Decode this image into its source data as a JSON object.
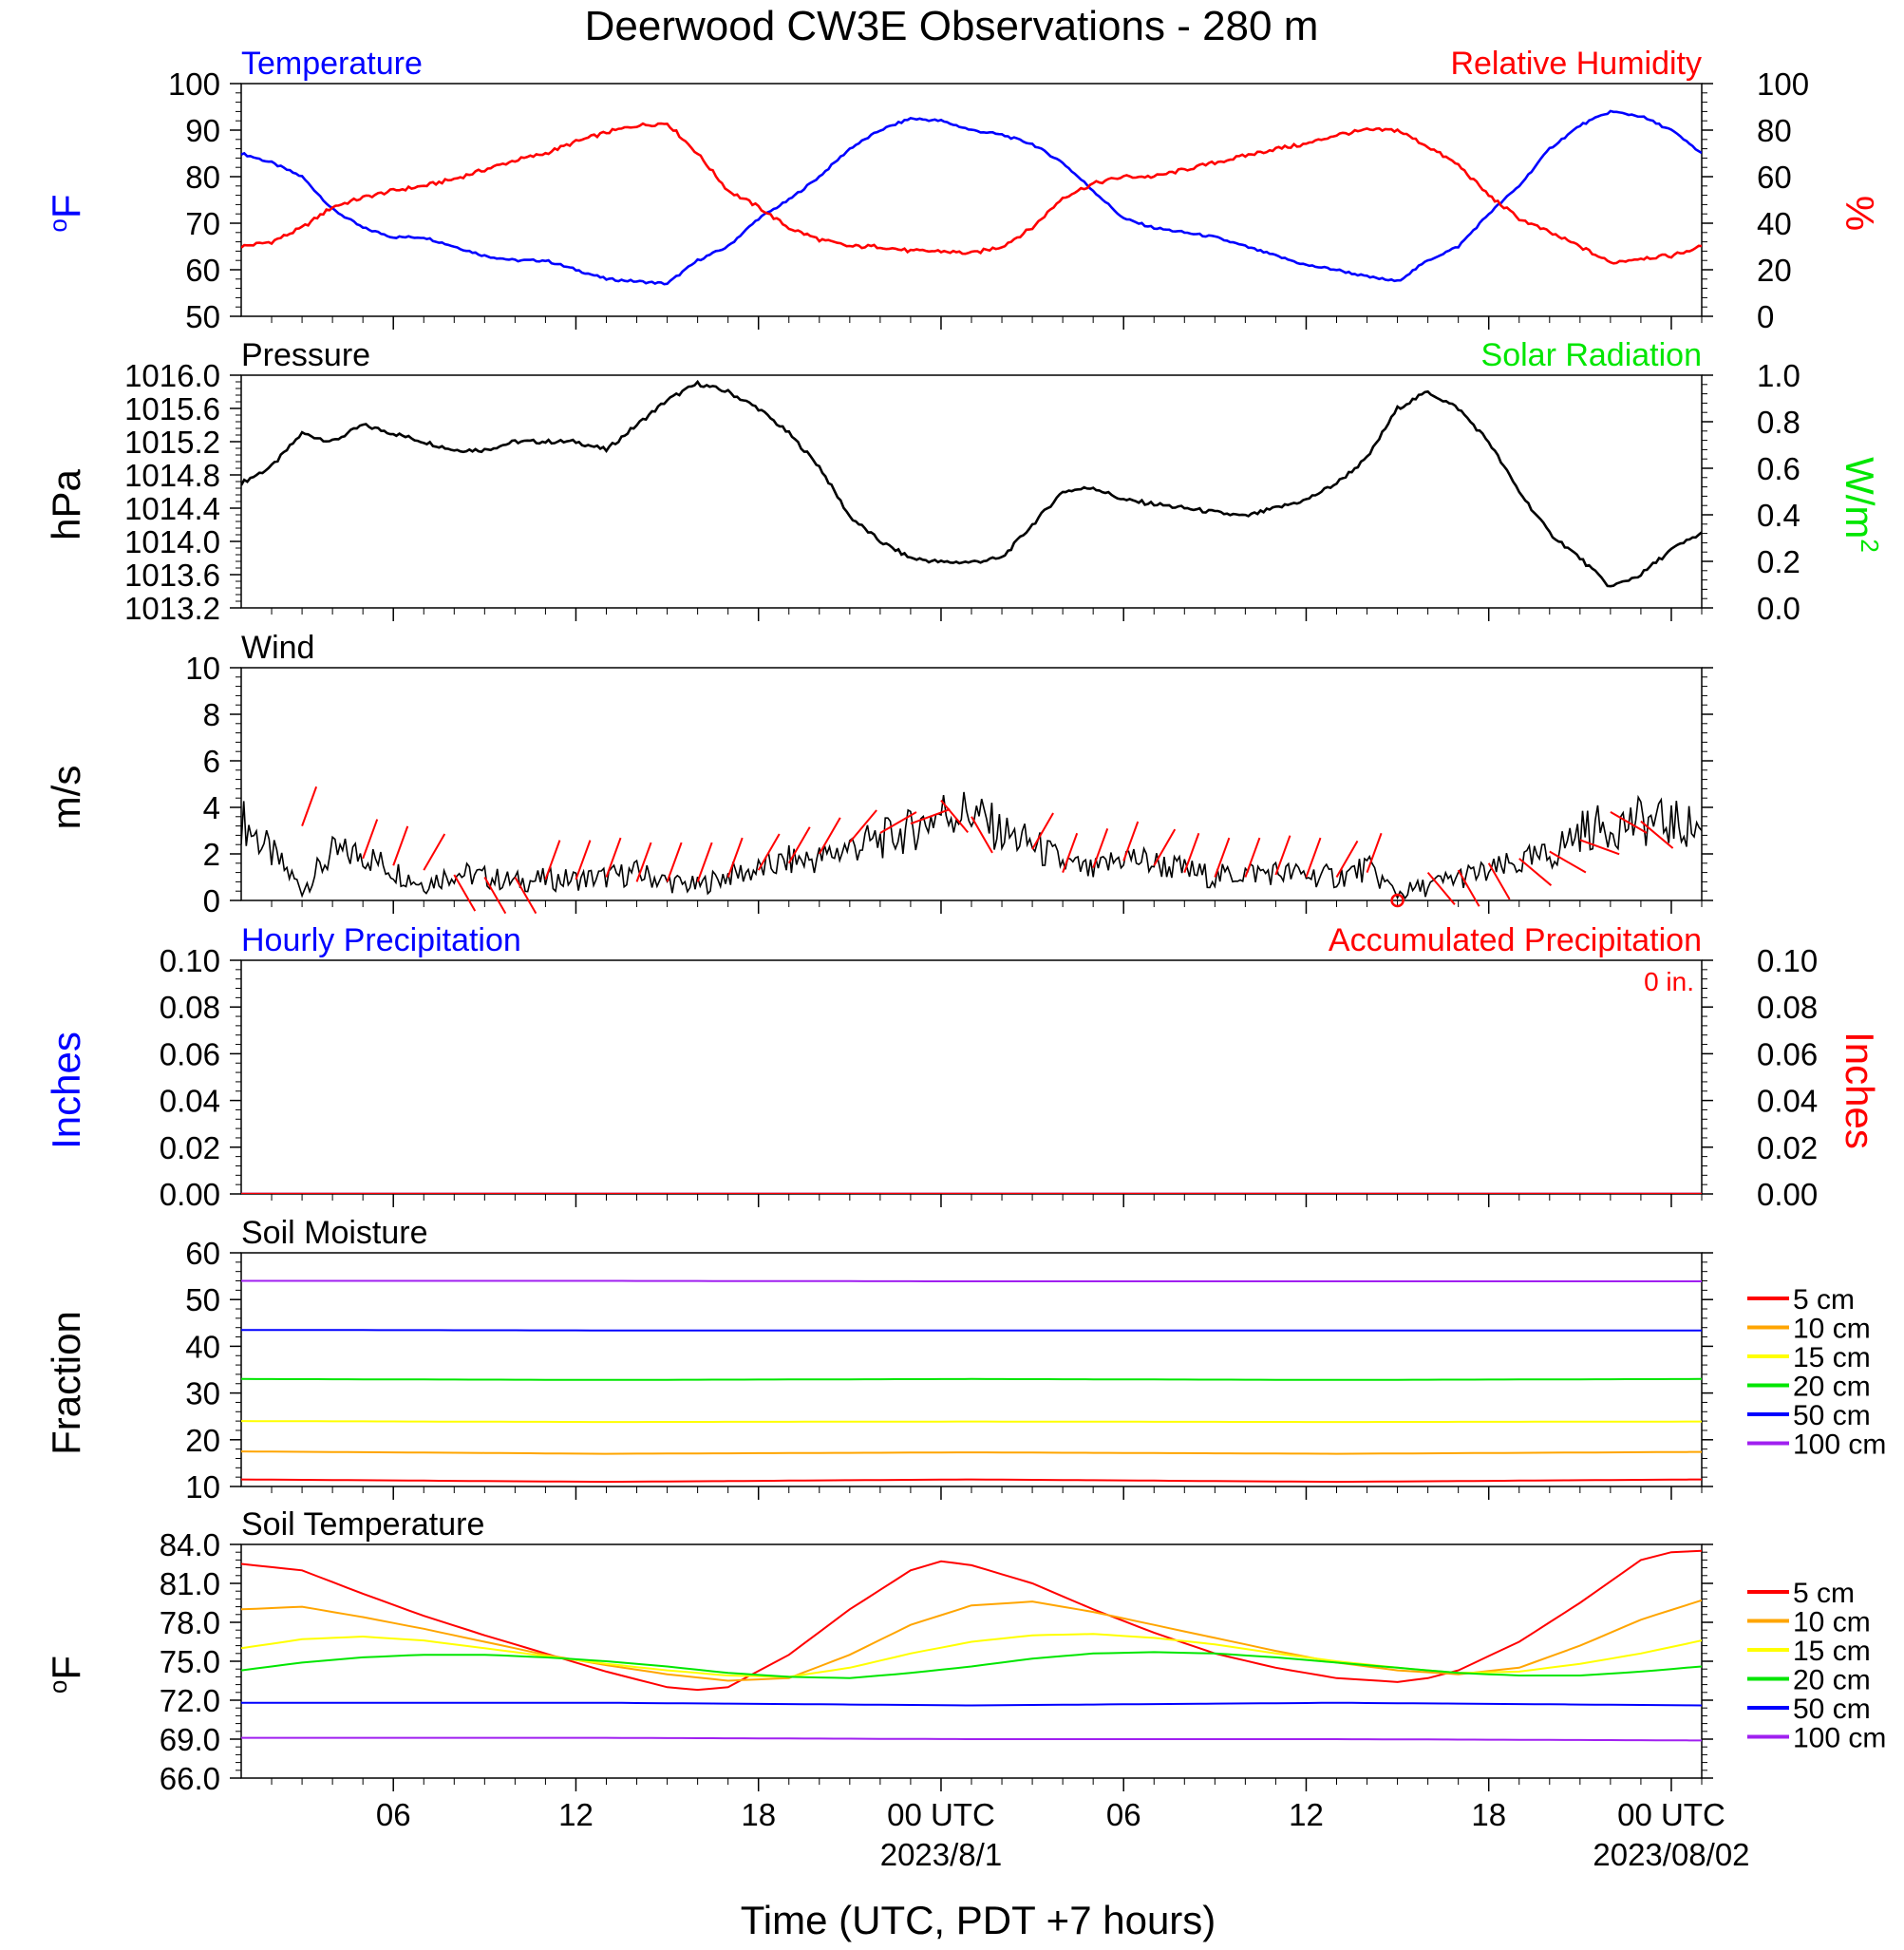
{
  "title": "Deerwood CW3E Observations - 280 m",
  "x_axis": {
    "label": "Time (UTC, PDT +7 hours)",
    "range_hours": [
      0,
      48
    ],
    "tick_labels": [
      {
        "hour": 5,
        "label": "06"
      },
      {
        "hour": 11,
        "label": "12"
      },
      {
        "hour": 17,
        "label": "18"
      },
      {
        "hour": 23,
        "label": "00 UTC"
      },
      {
        "hour": 29,
        "label": "06"
      },
      {
        "hour": 35,
        "label": "12"
      },
      {
        "hour": 41,
        "label": "18"
      },
      {
        "hour": 47,
        "label": "00 UTC"
      }
    ],
    "date_labels": [
      {
        "hour": 23,
        "label": "2023/8/1"
      },
      {
        "hour": 47,
        "label": "2023/08/02"
      }
    ]
  },
  "colors": {
    "temperature": "#0000ff",
    "humidity": "#ff0000",
    "solar": "#00e600",
    "black": "#000000",
    "accum": "#ff0000"
  },
  "chart_data": [
    {
      "id": "temp-rh",
      "type": "line",
      "left_title": "Temperature",
      "right_title": "Relative Humidity",
      "left_unit": "oF",
      "right_unit": "%",
      "left_ylim": [
        50,
        100
      ],
      "left_ticks": [
        "50",
        "60",
        "70",
        "80",
        "90",
        "100"
      ],
      "right_ylim": [
        0,
        100
      ],
      "right_ticks": [
        "0",
        "20",
        "40",
        "60",
        "80",
        "100"
      ],
      "series": [
        {
          "axis": "left",
          "color": "#0000ff",
          "x": [
            0,
            1,
            2,
            3,
            4,
            5,
            6,
            7,
            8,
            9,
            10,
            11,
            12,
            13,
            14,
            15,
            16,
            17,
            18,
            19,
            20,
            21,
            22,
            23,
            24,
            25,
            26,
            27,
            28,
            29,
            30,
            31,
            32,
            33,
            34,
            35,
            36,
            37,
            38,
            39,
            40,
            41,
            42,
            43,
            44,
            45,
            46,
            47,
            48
          ],
          "values": [
            85,
            83,
            80,
            73,
            69,
            67,
            67,
            65,
            63,
            62,
            62,
            60,
            58,
            57.5,
            57,
            62,
            65,
            71,
            75,
            80,
            86,
            90,
            92.5,
            92,
            90,
            89,
            87,
            83,
            77,
            71,
            69,
            68,
            67,
            65,
            63,
            61,
            60,
            58.5,
            57.5,
            62,
            65,
            72,
            78,
            86,
            91,
            94,
            93,
            90,
            85
          ]
        },
        {
          "axis": "right",
          "color": "#ff0000",
          "x": [
            0,
            1,
            2,
            3,
            4,
            5,
            6,
            7,
            8,
            9,
            10,
            11,
            12,
            13,
            14,
            15,
            16,
            17,
            18,
            19,
            20,
            21,
            22,
            23,
            24,
            25,
            26,
            27,
            28,
            29,
            30,
            31,
            32,
            33,
            34,
            35,
            36,
            37,
            38,
            39,
            40,
            41,
            42,
            43,
            44,
            45,
            46,
            47,
            48
          ],
          "values": [
            30,
            32,
            38,
            47,
            51,
            54,
            56,
            59,
            63,
            67,
            70,
            75,
            79,
            82,
            83,
            70,
            54,
            47,
            38,
            33,
            30,
            30,
            28,
            28,
            27,
            30,
            38,
            51,
            57,
            60,
            60,
            63,
            66,
            69,
            72,
            74,
            78,
            80,
            80,
            73,
            65,
            52,
            42,
            36,
            30,
            23,
            25,
            26,
            30
          ]
        }
      ]
    },
    {
      "id": "pressure",
      "type": "line",
      "left_title": "Pressure",
      "right_title": "Solar Radiation",
      "left_unit": "hPa",
      "right_unit": "W/m",
      "right_unit_sup": "2",
      "left_ylim": [
        1013.2,
        1016.0
      ],
      "left_ticks": [
        "1013.2",
        "1013.6",
        "1014.0",
        "1014.4",
        "1014.8",
        "1015.2",
        "1015.6",
        "1016.0"
      ],
      "right_ylim": [
        0,
        1.0
      ],
      "right_ticks": [
        "0.0",
        "0.2",
        "0.4",
        "0.6",
        "0.8",
        "1.0"
      ],
      "series": [
        {
          "axis": "left",
          "color": "#000000",
          "x": [
            0,
            1,
            2,
            3,
            4,
            5,
            6,
            7,
            8,
            9,
            10,
            11,
            12,
            13,
            14,
            15,
            16,
            17,
            18,
            19,
            20,
            21,
            22,
            23,
            24,
            25,
            26,
            27,
            28,
            29,
            30,
            31,
            32,
            33,
            34,
            35,
            36,
            37,
            38,
            39,
            40,
            41,
            42,
            43,
            44,
            45,
            46,
            47,
            48
          ],
          "values": [
            1014.7,
            1014.9,
            1015.3,
            1015.2,
            1015.4,
            1015.3,
            1015.2,
            1015.1,
            1015.1,
            1015.2,
            1015.2,
            1015.2,
            1015.1,
            1015.4,
            1015.7,
            1015.9,
            1015.8,
            1015.6,
            1015.3,
            1014.9,
            1014.3,
            1014.0,
            1013.8,
            1013.75,
            1013.75,
            1013.8,
            1014.2,
            1014.6,
            1014.65,
            1014.5,
            1014.45,
            1014.4,
            1014.35,
            1014.3,
            1014.4,
            1014.5,
            1014.7,
            1015.0,
            1015.6,
            1015.8,
            1015.6,
            1015.2,
            1014.6,
            1014.1,
            1013.8,
            1013.45,
            1013.6,
            1013.9,
            1014.1
          ]
        }
      ]
    },
    {
      "id": "wind",
      "type": "line",
      "left_title": "Wind",
      "left_unit": "m/s",
      "left_ylim": [
        0,
        10
      ],
      "left_ticks": [
        "0",
        "2",
        "4",
        "6",
        "8",
        "10"
      ],
      "calm_marker_hour": 38,
      "series": [
        {
          "axis": "left",
          "color": "#000000",
          "x": [
            0,
            1,
            2,
            3,
            4,
            5,
            6,
            7,
            8,
            9,
            10,
            11,
            12,
            13,
            14,
            15,
            16,
            17,
            18,
            19,
            20,
            21,
            22,
            23,
            24,
            25,
            26,
            27,
            28,
            29,
            30,
            31,
            32,
            33,
            34,
            35,
            36,
            37,
            38,
            39,
            40,
            41,
            42,
            43,
            44,
            45,
            46,
            47,
            48
          ],
          "values": [
            3.5,
            2.0,
            0.5,
            2.0,
            2.0,
            1.3,
            0.7,
            1.2,
            1.0,
            0.8,
            0.9,
            0.9,
            1.0,
            1.2,
            0.8,
            0.6,
            1.1,
            1.3,
            1.7,
            1.8,
            2.3,
            2.6,
            3.0,
            3.8,
            3.8,
            2.9,
            2.4,
            1.6,
            1.2,
            1.9,
            1.6,
            1.3,
            1.0,
            1.2,
            1.2,
            1.1,
            1.0,
            1.4,
            0.3,
            0.6,
            1.0,
            1.2,
            1.6,
            1.9,
            3.0,
            3.2,
            3.4,
            3.3,
            3.1
          ]
        }
      ],
      "barbs": {
        "color": "#ff0000",
        "x": [
          2,
          4,
          5,
          6,
          7,
          8,
          9,
          10,
          11,
          12,
          13,
          14,
          15,
          16,
          17,
          18,
          19,
          20,
          21,
          22,
          23,
          24,
          26,
          27,
          28,
          29,
          30,
          31,
          32,
          33,
          34,
          35,
          36,
          37,
          39,
          40,
          41,
          42,
          43,
          44,
          45,
          46
        ],
        "speed": [
          3.2,
          1.8,
          1.5,
          1.3,
          1.1,
          1.0,
          1.0,
          0.9,
          0.9,
          1.0,
          0.8,
          0.8,
          0.8,
          1.0,
          1.3,
          1.6,
          2.0,
          2.5,
          2.9,
          3.3,
          4.3,
          3.6,
          2.2,
          1.2,
          1.4,
          1.7,
          1.5,
          1.2,
          1.0,
          1.0,
          1.1,
          1.0,
          1.0,
          1.2,
          1.2,
          1.3,
          1.6,
          1.8,
          2.1,
          2.6,
          3.8,
          3.4
        ],
        "dir_deg": [
          200,
          200,
          200,
          210,
          330,
          330,
          330,
          200,
          200,
          200,
          200,
          200,
          200,
          200,
          210,
          210,
          210,
          220,
          240,
          250,
          320,
          330,
          210,
          200,
          200,
          200,
          210,
          200,
          200,
          200,
          200,
          200,
          210,
          200,
          320,
          330,
          330,
          310,
          300,
          290,
          300,
          310
        ]
      }
    },
    {
      "id": "precip",
      "type": "line",
      "left_title": "Hourly Precipitation",
      "right_title": "Accumulated Precipitation",
      "accum_note": "0 in.",
      "left_unit": "Inches",
      "right_unit": "Inches",
      "left_ylim": [
        0,
        0.1
      ],
      "left_ticks": [
        "0.00",
        "0.02",
        "0.04",
        "0.06",
        "0.08",
        "0.10"
      ],
      "right_ylim": [
        0,
        0.1
      ],
      "right_ticks": [
        "0.00",
        "0.02",
        "0.04",
        "0.06",
        "0.08",
        "0.10"
      ],
      "series": [
        {
          "axis": "left",
          "color": "#0000ff",
          "x": [
            0,
            48
          ],
          "values": [
            0,
            0
          ]
        },
        {
          "axis": "right",
          "color": "#ff0000",
          "x": [
            0,
            48
          ],
          "values": [
            0,
            0
          ]
        }
      ]
    },
    {
      "id": "soil-moisture",
      "type": "line",
      "left_title": "Soil Moisture",
      "left_unit": "Fraction",
      "left_ylim": [
        10,
        60
      ],
      "left_ticks": [
        "10",
        "20",
        "30",
        "40",
        "50",
        "60"
      ],
      "series": [
        {
          "name": "5 cm",
          "color": "#ff0000",
          "x": [
            0,
            12,
            24,
            36,
            48
          ],
          "values": [
            11.5,
            11.0,
            11.5,
            11.0,
            11.5
          ]
        },
        {
          "name": "10 cm",
          "color": "#ffa500",
          "x": [
            0,
            12,
            24,
            36,
            48
          ],
          "values": [
            17.5,
            17.0,
            17.3,
            17.0,
            17.4
          ]
        },
        {
          "name": "15 cm",
          "color": "#ffff00",
          "x": [
            0,
            12,
            24,
            36,
            48
          ],
          "values": [
            24.0,
            23.8,
            23.9,
            23.8,
            23.9
          ]
        },
        {
          "name": "20 cm",
          "color": "#00e600",
          "x": [
            0,
            12,
            24,
            36,
            48
          ],
          "values": [
            33.0,
            32.8,
            33.0,
            32.8,
            33.0
          ]
        },
        {
          "name": "50 cm",
          "color": "#0000ff",
          "x": [
            0,
            12,
            24,
            36,
            48
          ],
          "values": [
            43.5,
            43.4,
            43.4,
            43.4,
            43.4
          ]
        },
        {
          "name": "100 cm",
          "color": "#a020f0",
          "x": [
            0,
            12,
            24,
            36,
            48
          ],
          "values": [
            54.0,
            54.0,
            53.9,
            53.9,
            53.9
          ]
        }
      ]
    },
    {
      "id": "soil-temperature",
      "type": "line",
      "left_title": "Soil Temperature",
      "left_unit": "oF",
      "left_ylim": [
        66,
        84
      ],
      "left_ticks": [
        "66.0",
        "69.0",
        "72.0",
        "75.0",
        "78.0",
        "81.0",
        "84.0"
      ],
      "series": [
        {
          "name": "5 cm",
          "color": "#ff0000",
          "x": [
            0,
            2,
            4,
            6,
            8,
            10,
            12,
            14,
            15,
            16,
            18,
            20,
            22,
            23,
            24,
            26,
            28,
            30,
            32,
            34,
            36,
            38,
            39,
            40,
            42,
            44,
            46,
            47,
            48
          ],
          "values": [
            82.5,
            82.0,
            80.2,
            78.5,
            77.0,
            75.6,
            74.2,
            73.0,
            72.8,
            73.0,
            75.5,
            79.0,
            82.0,
            82.7,
            82.4,
            81.0,
            79.0,
            77.2,
            75.6,
            74.5,
            73.7,
            73.4,
            73.7,
            74.3,
            76.5,
            79.5,
            82.8,
            83.4,
            83.5
          ]
        },
        {
          "name": "10 cm",
          "color": "#ffa500",
          "x": [
            0,
            2,
            4,
            6,
            8,
            10,
            12,
            14,
            16,
            18,
            20,
            22,
            24,
            26,
            28,
            30,
            32,
            34,
            36,
            38,
            40,
            42,
            44,
            46,
            48
          ],
          "values": [
            79.0,
            79.2,
            78.4,
            77.5,
            76.5,
            75.5,
            74.7,
            74.0,
            73.5,
            73.7,
            75.5,
            77.8,
            79.3,
            79.6,
            78.8,
            77.8,
            76.8,
            75.8,
            74.9,
            74.3,
            74.0,
            74.5,
            76.2,
            78.2,
            79.7
          ]
        },
        {
          "name": "15 cm",
          "color": "#ffff00",
          "x": [
            0,
            2,
            4,
            6,
            8,
            10,
            12,
            14,
            16,
            18,
            20,
            22,
            24,
            26,
            28,
            30,
            32,
            34,
            36,
            38,
            40,
            42,
            44,
            46,
            48
          ],
          "values": [
            76.0,
            76.7,
            76.9,
            76.6,
            76.0,
            75.4,
            74.8,
            74.3,
            73.9,
            73.8,
            74.5,
            75.6,
            76.5,
            77.0,
            77.1,
            76.8,
            76.3,
            75.6,
            75.0,
            74.5,
            74.1,
            74.2,
            74.8,
            75.6,
            76.6
          ]
        },
        {
          "name": "20 cm",
          "color": "#00e600",
          "x": [
            0,
            2,
            4,
            6,
            8,
            10,
            12,
            14,
            16,
            18,
            20,
            22,
            24,
            26,
            28,
            30,
            32,
            34,
            36,
            38,
            40,
            42,
            44,
            46,
            48
          ],
          "values": [
            74.3,
            74.9,
            75.3,
            75.5,
            75.5,
            75.3,
            75.0,
            74.6,
            74.1,
            73.8,
            73.7,
            74.1,
            74.6,
            75.2,
            75.6,
            75.7,
            75.6,
            75.3,
            74.9,
            74.5,
            74.1,
            73.9,
            73.9,
            74.2,
            74.6
          ]
        },
        {
          "name": "50 cm",
          "color": "#0000ff",
          "x": [
            0,
            12,
            24,
            36,
            48
          ],
          "values": [
            71.8,
            71.8,
            71.6,
            71.8,
            71.6
          ]
        },
        {
          "name": "100 cm",
          "color": "#a020f0",
          "x": [
            0,
            12,
            24,
            36,
            48
          ],
          "values": [
            69.1,
            69.1,
            69.0,
            69.0,
            68.9
          ]
        }
      ]
    }
  ]
}
